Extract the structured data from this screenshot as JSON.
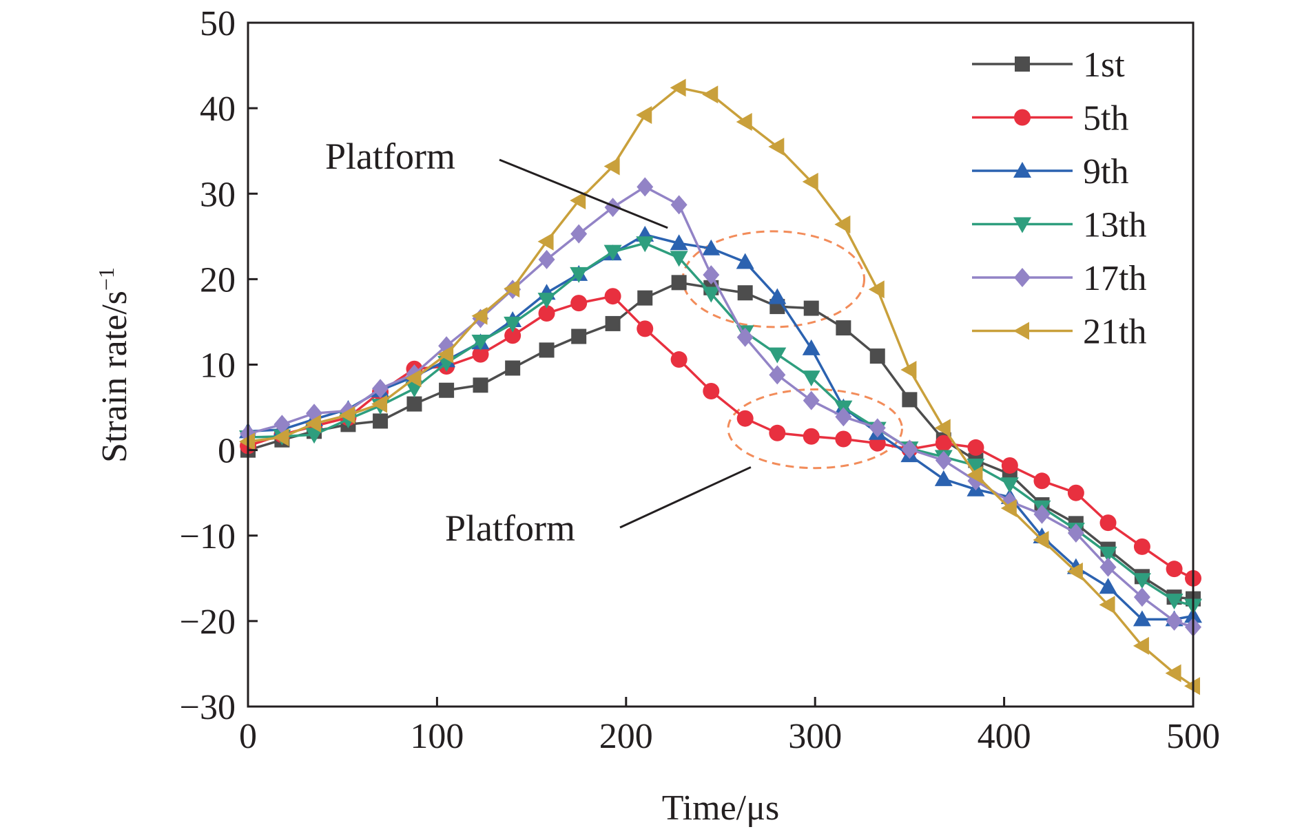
{
  "chart_data": {
    "type": "line",
    "title": "",
    "xlabel": "Time/μs",
    "ylabel": "Strain rate/s",
    "ylabel_superscript": "−1",
    "xlim": [
      0,
      500
    ],
    "ylim": [
      -30,
      50
    ],
    "xticks": [
      0,
      100,
      200,
      300,
      400,
      500
    ],
    "xtick_labels": [
      "0",
      "100",
      "200",
      "300",
      "400",
      "500"
    ],
    "yticks": [
      -30,
      -20,
      -10,
      0,
      10,
      20,
      30,
      40,
      50
    ],
    "ytick_labels": [
      "−30",
      "−20",
      "−10",
      "0",
      "10",
      "20",
      "30",
      "40",
      "50"
    ],
    "grid": false,
    "legend_position": "top-right",
    "x": [
      0,
      18,
      35,
      53,
      70,
      88,
      105,
      123,
      140,
      158,
      175,
      193,
      210,
      228,
      245,
      263,
      280,
      298,
      315,
      333,
      350,
      368,
      385,
      403,
      420,
      438,
      455,
      473,
      490,
      500
    ],
    "series": [
      {
        "name": "1st",
        "color": "#4d4d4d",
        "marker": "square",
        "values": [
          0,
          1.2,
          2.2,
          3,
          3.4,
          5.4,
          7,
          7.6,
          9.6,
          11.7,
          13.3,
          14.8,
          17.8,
          19.6,
          19,
          18.4,
          16.8,
          16.6,
          14.3,
          11,
          5.9,
          1.2,
          -1.2,
          -2.8,
          -6.4,
          -8.6,
          -11.6,
          -14.8,
          -17.2,
          -17.4
        ]
      },
      {
        "name": "5th",
        "color": "#e8303f",
        "marker": "circle",
        "values": [
          0.5,
          1.8,
          2.8,
          3.8,
          6.8,
          9.5,
          9.8,
          11.2,
          13.4,
          16,
          17.2,
          18,
          14.2,
          10.6,
          6.9,
          3.7,
          2,
          1.6,
          1.3,
          0.8,
          0.1,
          0.8,
          0.3,
          -1.8,
          -3.6,
          -5,
          -8.5,
          -11.3,
          -13.9,
          -15
        ]
      },
      {
        "name": "9th",
        "color": "#2b62b0",
        "marker": "triangle-up",
        "values": [
          2.2,
          2.4,
          3.6,
          4.8,
          7,
          8.6,
          10.5,
          12.6,
          15.2,
          18.4,
          20.6,
          23,
          25.2,
          24.2,
          23.6,
          22,
          17.9,
          11.9,
          5,
          2,
          -0.6,
          -3.4,
          -4.6,
          -5.5,
          -10.1,
          -13.7,
          -16,
          -19.8,
          -19.8,
          -19.4
        ]
      },
      {
        "name": "13th",
        "color": "#2e9e7e",
        "marker": "triangle-down",
        "values": [
          1.5,
          1.6,
          1.8,
          3.6,
          5.2,
          7.2,
          10.2,
          12.7,
          14.8,
          17.6,
          20.6,
          23.2,
          24.2,
          22.5,
          18.3,
          13.8,
          11.2,
          8.5,
          5,
          2.5,
          0.2,
          -0.8,
          -1.8,
          -4,
          -6.7,
          -9.3,
          -12.1,
          -15.2,
          -17.6,
          -18.2
        ]
      },
      {
        "name": "17th",
        "color": "#9283c6",
        "marker": "diamond",
        "values": [
          1.9,
          3,
          4.3,
          4.6,
          7.2,
          8.9,
          12.2,
          15.4,
          18.8,
          22.3,
          25.3,
          28.4,
          30.8,
          28.7,
          20.5,
          13.2,
          8.8,
          5.8,
          3.9,
          2.6,
          0.1,
          -1.2,
          -3.6,
          -6,
          -7.5,
          -9.7,
          -13.7,
          -17.2,
          -20,
          -20.7
        ]
      },
      {
        "name": "21th",
        "color": "#c9a03b",
        "marker": "triangle-left",
        "values": [
          1,
          1.5,
          3.1,
          4.1,
          5.4,
          8.4,
          11.2,
          15.7,
          18.9,
          24.4,
          29.2,
          33.2,
          39.2,
          42.4,
          41.6,
          38.4,
          35.5,
          31.4,
          26.4,
          18.8,
          9.4,
          2.6,
          -2.9,
          -6.8,
          -10.5,
          -14.2,
          -18.1,
          -22.9,
          -26.1,
          -27.6
        ]
      }
    ],
    "annotations": [
      {
        "text": "Platform",
        "points_to": {
          "x": 222,
          "y": 26
        }
      },
      {
        "text": "Platform",
        "points_to": {
          "x": 266,
          "y": -2
        }
      }
    ],
    "highlight_ellipses": [
      {
        "cx": 278,
        "cy": 20,
        "rx": 48,
        "ry": 5.6,
        "color": "#f28c5a"
      },
      {
        "cx": 300,
        "cy": 2.5,
        "rx": 46,
        "ry": 4.6,
        "color": "#f28c5a"
      }
    ]
  }
}
